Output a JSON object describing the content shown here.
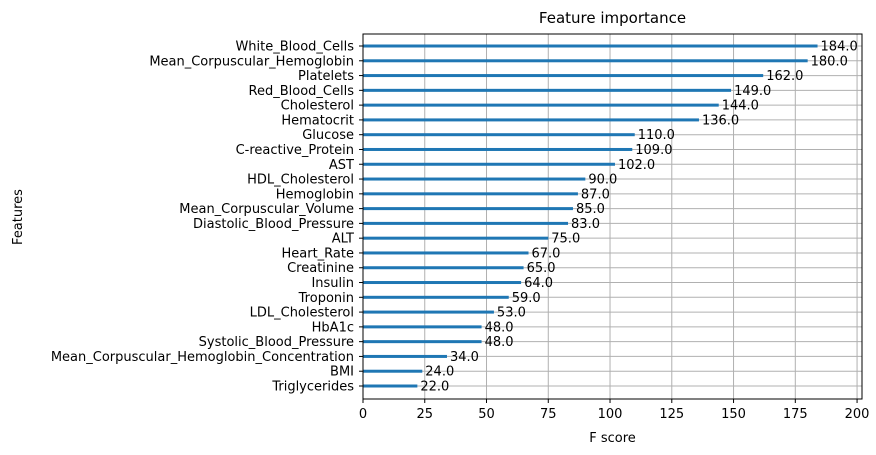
{
  "chart_data": {
    "type": "bar",
    "orientation": "horizontal",
    "title": "Feature importance",
    "xlabel": "F score",
    "ylabel": "Features",
    "xlim": [
      0,
      202
    ],
    "xticks": [
      0,
      25,
      50,
      75,
      100,
      125,
      150,
      175,
      200
    ],
    "grid": true,
    "bar_color": "#1f77b4",
    "categories": [
      "White_Blood_Cells",
      "Mean_Corpuscular_Hemoglobin",
      "Platelets",
      "Red_Blood_Cells",
      "Cholesterol",
      "Hematocrit",
      "Glucose",
      "C-reactive_Protein",
      "AST",
      "HDL_Cholesterol",
      "Hemoglobin",
      "Mean_Corpuscular_Volume",
      "Diastolic_Blood_Pressure",
      "ALT",
      "Heart_Rate",
      "Creatinine",
      "Insulin",
      "Troponin",
      "LDL_Cholesterol",
      "HbA1c",
      "Systolic_Blood_Pressure",
      "Mean_Corpuscular_Hemoglobin_Concentration",
      "BMI",
      "Triglycerides"
    ],
    "values": [
      184,
      180,
      162,
      149,
      144,
      136,
      110,
      109,
      102,
      90,
      87,
      85,
      83,
      75,
      67,
      65,
      64,
      59,
      53,
      48,
      48,
      34,
      24,
      22
    ],
    "value_labels": [
      "184.0",
      "180.0",
      "162.0",
      "149.0",
      "144.0",
      "136.0",
      "110.0",
      "109.0",
      "102.0",
      "90.0",
      "87.0",
      "85.0",
      "83.0",
      "75.0",
      "67.0",
      "65.0",
      "64.0",
      "59.0",
      "53.0",
      "48.0",
      "48.0",
      "34.0",
      "24.0",
      "22.0"
    ]
  }
}
